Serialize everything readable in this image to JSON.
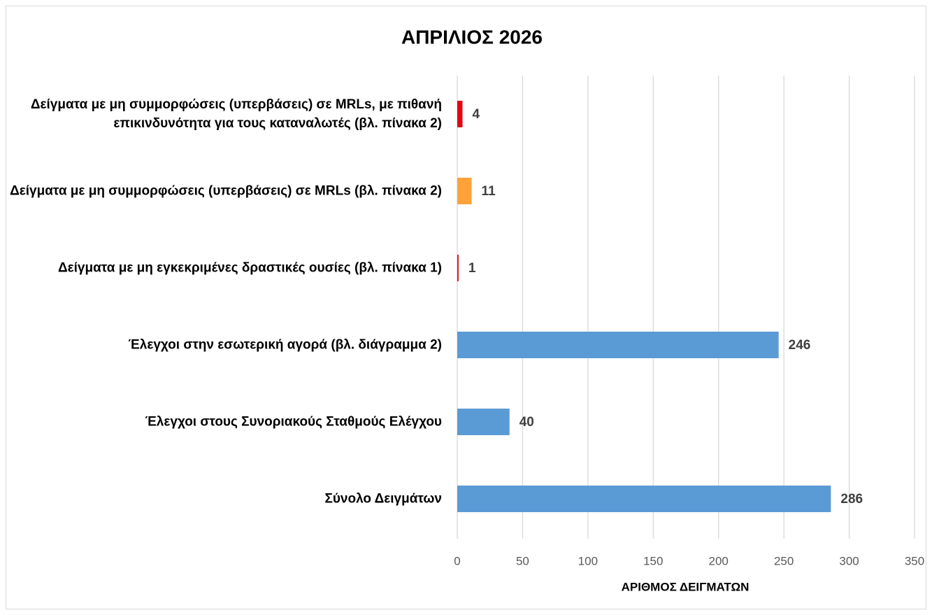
{
  "chart_data": {
    "type": "barh",
    "title": "ΑΠΡΙΛΙΟΣ 2026",
    "categories": [
      "Δείγματα με μη συμμορφώσεις (υπερβάσεις) σε MRLs, με πιθανή επικινδυνότητα για τους καταναλωτές (βλ. πίνακα 2)",
      "Δείγματα με μη συμμορφώσεις (υπερβάσεις) σε MRLs (βλ. πίνακα 2)",
      "Δείγματα με μη εγκεκριμένες δραστικές ουσίες (βλ. πίνακα 1)",
      "Έλεγχοι στην εσωτερική αγορά (βλ. διάγραμμα 2)",
      "Έλεγχοι στους Συνοριακούς Σταθμούς Ελέγχου",
      "Σύνολο Δειγμάτων"
    ],
    "values": [
      4,
      11,
      1,
      246,
      40,
      286
    ],
    "colors": [
      "#e30613",
      "#ffa23a",
      "#e30613",
      "#5b9bd5",
      "#5b9bd5",
      "#5b9bd5"
    ],
    "xlabel": "ΑΡΙΘΜΟΣ ΔΕΙΓΜΑΤΩΝ",
    "xlim": [
      0,
      350
    ],
    "xticks": [
      0,
      50,
      100,
      150,
      200,
      250,
      300,
      350
    ],
    "grid": true
  }
}
